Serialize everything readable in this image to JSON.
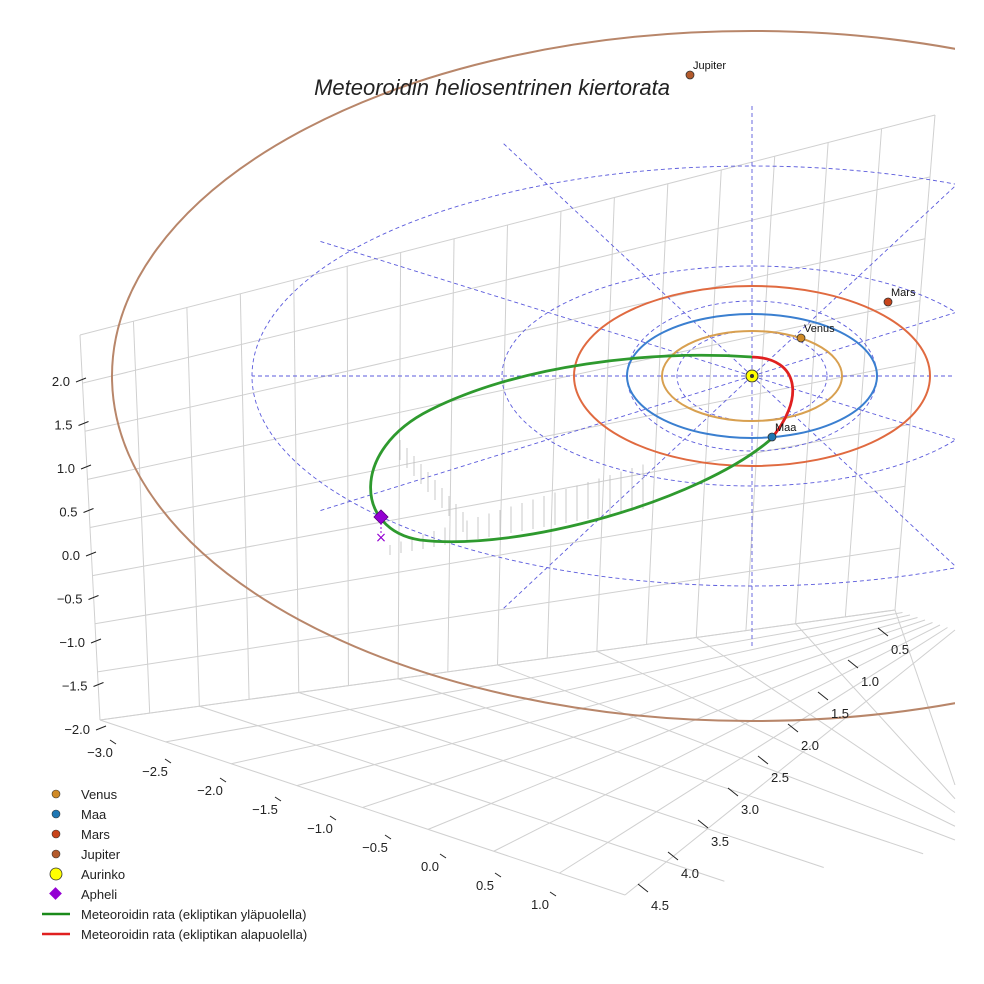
{
  "chart_data": {
    "type": "line3d",
    "title": "Meteoroidin heliosentrinen kiertorata",
    "z_axis_ticks": [
      "2.0",
      "1.5",
      "1.0",
      "0.5",
      "0.0",
      "−0.5",
      "−1.0",
      "−1.5",
      "−2.0"
    ],
    "x_axis_ticks": [
      "−3.0",
      "−2.5",
      "−2.0",
      "−1.5",
      "−1.0",
      "−0.5",
      "0.0",
      "0.5",
      "1.0"
    ],
    "y_axis_ticks": [
      "0.5",
      "1.0",
      "1.5",
      "2.0",
      "2.5",
      "3.0",
      "3.5",
      "4.0",
      "4.5"
    ],
    "xlim": [
      -3.0,
      1.0
    ],
    "ylim": [
      0.5,
      4.5
    ],
    "zlim": [
      -2.0,
      2.0
    ],
    "planets": [
      {
        "name": "Venus",
        "label": "Venus",
        "color": "#d08a26",
        "orbit_color": "#d8a050",
        "orbit_radius_au": 0.72
      },
      {
        "name": "Maa",
        "label": "Maa",
        "color": "#1f77b4",
        "orbit_color": "#3a7fd0",
        "orbit_radius_au": 1.0
      },
      {
        "name": "Mars",
        "label": "Mars",
        "color": "#c8441a",
        "orbit_color": "#e06a40",
        "orbit_radius_au": 1.52
      },
      {
        "name": "Jupiter",
        "label": "Jupiter",
        "color": "#b35a2c",
        "orbit_color": "#b8866a",
        "orbit_radius_au": 5.2
      }
    ],
    "sun": {
      "label": "Aurinko",
      "color": "#ffff00"
    },
    "aphelion": {
      "label": "Apheli",
      "color": "#9400d3"
    },
    "meteoroid_orbit": {
      "above_label": "Meteoroidin rata (ekliptikan yläpuolella)",
      "below_label": "Meteoroidin rata (ekliptikan alapuolella)",
      "above_color": "#2e9a2e",
      "below_color": "#e02020"
    },
    "legend": [
      {
        "label": "Venus",
        "marker": "circle",
        "color": "#d08a26"
      },
      {
        "label": "Maa",
        "marker": "circle",
        "color": "#1f77b4"
      },
      {
        "label": "Mars",
        "marker": "circle",
        "color": "#c8441a"
      },
      {
        "label": "Jupiter",
        "marker": "circle",
        "color": "#b35a2c"
      },
      {
        "label": "Aurinko",
        "marker": "circle-big",
        "color": "#ffff00"
      },
      {
        "label": "Apheli",
        "marker": "diamond",
        "color": "#9400d3"
      },
      {
        "label": "Meteoroidin rata (ekliptikan yläpuolella)",
        "marker": "line",
        "color": "#1a8a1a"
      },
      {
        "label": "Meteoroidin rata (ekliptikan alapuolella)",
        "marker": "line",
        "color": "#e02020"
      }
    ]
  }
}
